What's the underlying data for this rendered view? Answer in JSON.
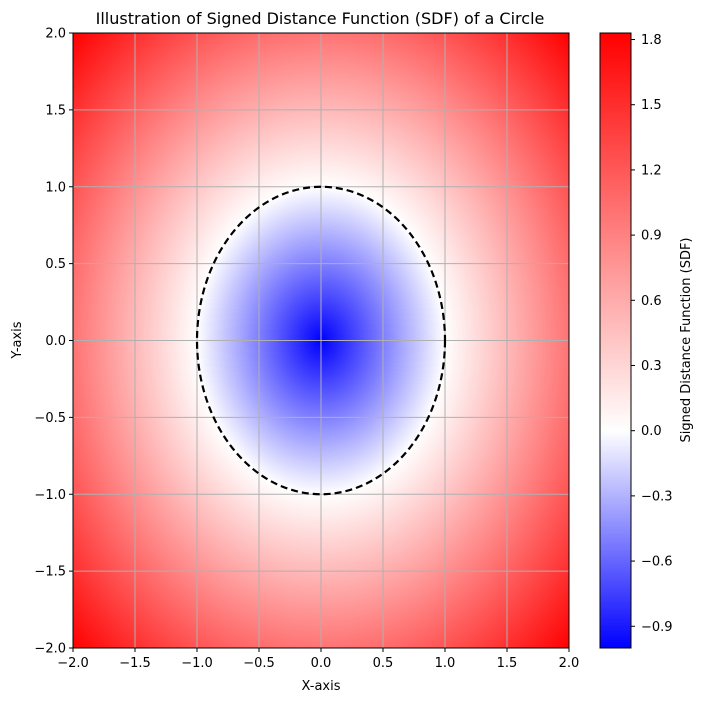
{
  "chart_data": {
    "type": "heatmap",
    "title": "Illustration of Signed Distance Function (SDF) of a Circle",
    "xlabel": "X-axis",
    "ylabel": "Y-axis",
    "xlim": [
      -2.0,
      2.0
    ],
    "ylim": [
      -2.0,
      2.0
    ],
    "x_ticks": [
      -2.0,
      -1.5,
      -1.0,
      -0.5,
      0.0,
      0.5,
      1.0,
      1.5,
      2.0
    ],
    "x_tick_labels": [
      "−2.0",
      "−1.5",
      "−1.0",
      "−0.5",
      "0.0",
      "0.5",
      "1.0",
      "1.5",
      "2.0"
    ],
    "y_ticks": [
      -2.0,
      -1.5,
      -1.0,
      -0.5,
      0.0,
      0.5,
      1.0,
      1.5,
      2.0
    ],
    "y_tick_labels": [
      "−2.0",
      "−1.5",
      "−1.0",
      "−0.5",
      "0.0",
      "0.5",
      "1.0",
      "1.5",
      "2.0"
    ],
    "grid": true,
    "field": {
      "function": "signed distance to circle",
      "center": [
        0.0,
        0.0
      ],
      "radius": 1.0,
      "min": -1.0,
      "max": 1.83,
      "colormap": "bwr",
      "colormap_colors": [
        "#0000ff",
        "#ffffff",
        "#ff0000"
      ]
    },
    "contour": {
      "level": 0.0,
      "style": "dashed",
      "color": "#000000"
    },
    "colorbar": {
      "label": "Signed Distance Function (SDF)",
      "range": [
        -1.0,
        1.83
      ],
      "ticks": [
        -0.9,
        -0.6,
        -0.3,
        0.0,
        0.3,
        0.6,
        0.9,
        1.2,
        1.5,
        1.8
      ],
      "tick_labels": [
        "−0.9",
        "−0.6",
        "−0.3",
        "0.0",
        "0.3",
        "0.6",
        "0.9",
        "1.2",
        "1.5",
        "1.8"
      ]
    }
  }
}
